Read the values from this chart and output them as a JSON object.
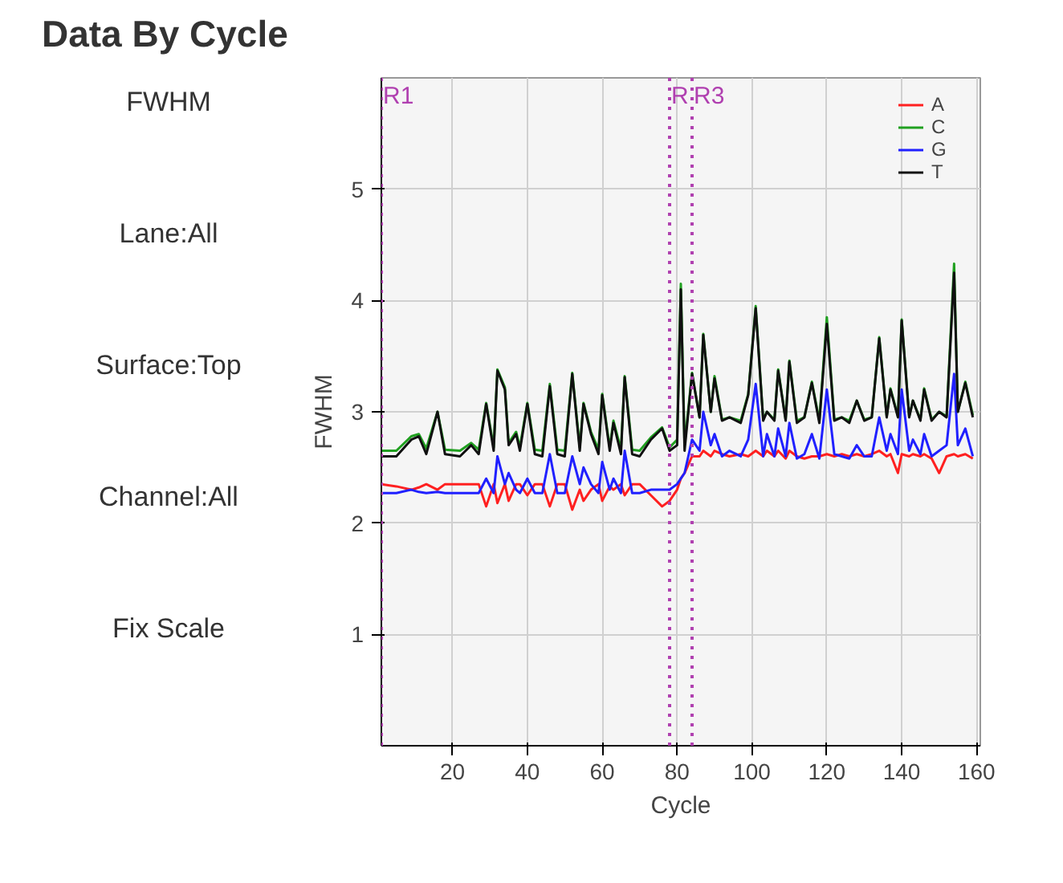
{
  "chart_data": {
    "type": "line",
    "title": "Data By Cycle",
    "xlabel": "Cycle",
    "ylabel": "FWHM",
    "annotations": [
      "FWHM",
      "Lane:All",
      "Surface:Top",
      "Channel:All",
      "Fix Scale"
    ],
    "x": [
      1,
      5,
      9,
      11,
      13,
      16,
      18,
      22,
      25,
      27,
      29,
      31,
      32,
      34,
      35,
      37,
      38,
      40,
      42,
      44,
      46,
      48,
      50,
      52,
      54,
      55,
      57,
      59,
      60,
      62,
      63,
      65,
      66,
      68,
      70,
      73,
      76,
      78,
      80,
      81,
      82,
      84,
      86,
      87,
      89,
      90,
      92,
      94,
      97,
      99,
      101,
      103,
      104,
      106,
      107,
      109,
      110,
      112,
      114,
      116,
      118,
      120,
      122,
      124,
      126,
      128,
      130,
      132,
      134,
      136,
      137,
      139,
      140,
      142,
      143,
      145,
      146,
      148,
      150,
      152,
      154,
      155,
      157,
      159
    ],
    "series": [
      {
        "name": "A",
        "color": "#ff2020",
        "values": [
          2.35,
          2.33,
          2.3,
          2.32,
          2.35,
          2.3,
          2.35,
          2.35,
          2.35,
          2.35,
          2.15,
          2.35,
          2.18,
          2.35,
          2.2,
          2.35,
          2.35,
          2.25,
          2.35,
          2.35,
          2.15,
          2.35,
          2.35,
          2.12,
          2.3,
          2.2,
          2.3,
          2.35,
          2.2,
          2.33,
          2.3,
          2.35,
          2.25,
          2.35,
          2.35,
          2.25,
          2.15,
          2.2,
          2.3,
          2.4,
          2.45,
          2.6,
          2.6,
          2.65,
          2.6,
          2.65,
          2.62,
          2.6,
          2.62,
          2.6,
          2.65,
          2.6,
          2.65,
          2.6,
          2.65,
          2.58,
          2.65,
          2.6,
          2.58,
          2.6,
          2.6,
          2.62,
          2.6,
          2.62,
          2.6,
          2.62,
          2.6,
          2.62,
          2.65,
          2.6,
          2.62,
          2.45,
          2.62,
          2.6,
          2.62,
          2.6,
          2.62,
          2.58,
          2.45,
          2.6,
          2.62,
          2.6,
          2.62,
          2.58
        ]
      },
      {
        "name": "C",
        "color": "#20a020",
        "values": [
          2.65,
          2.65,
          2.78,
          2.8,
          2.67,
          3.0,
          2.66,
          2.65,
          2.72,
          2.66,
          3.08,
          2.68,
          3.38,
          3.22,
          2.72,
          2.82,
          2.68,
          3.08,
          2.66,
          2.65,
          3.25,
          2.66,
          2.65,
          3.35,
          2.68,
          3.08,
          2.82,
          2.66,
          3.16,
          2.68,
          2.92,
          2.66,
          3.32,
          2.66,
          2.65,
          2.77,
          2.86,
          2.68,
          2.75,
          4.15,
          2.7,
          3.35,
          2.95,
          3.7,
          3.0,
          3.32,
          2.93,
          2.95,
          2.92,
          3.16,
          3.95,
          2.93,
          3.0,
          2.93,
          3.38,
          2.93,
          3.46,
          2.92,
          2.95,
          3.27,
          2.92,
          3.85,
          2.93,
          2.95,
          2.92,
          3.1,
          2.93,
          2.95,
          3.67,
          2.96,
          3.21,
          2.96,
          3.83,
          2.96,
          3.1,
          2.93,
          3.21,
          2.93,
          3.0,
          2.96,
          4.33,
          3.0,
          3.27,
          2.97
        ]
      },
      {
        "name": "G",
        "color": "#2020ff",
        "values": [
          2.27,
          2.27,
          2.3,
          2.28,
          2.27,
          2.28,
          2.27,
          2.27,
          2.27,
          2.27,
          2.4,
          2.27,
          2.6,
          2.35,
          2.45,
          2.3,
          2.27,
          2.4,
          2.27,
          2.27,
          2.62,
          2.27,
          2.27,
          2.6,
          2.35,
          2.5,
          2.35,
          2.27,
          2.55,
          2.3,
          2.4,
          2.27,
          2.65,
          2.27,
          2.27,
          2.3,
          2.3,
          2.3,
          2.35,
          2.4,
          2.45,
          2.75,
          2.65,
          3.0,
          2.7,
          2.8,
          2.6,
          2.65,
          2.6,
          2.75,
          3.25,
          2.6,
          2.8,
          2.6,
          2.85,
          2.6,
          2.9,
          2.58,
          2.62,
          2.8,
          2.58,
          3.2,
          2.62,
          2.6,
          2.58,
          2.7,
          2.6,
          2.6,
          2.95,
          2.65,
          2.8,
          2.62,
          3.2,
          2.65,
          2.75,
          2.62,
          2.8,
          2.6,
          2.65,
          2.7,
          3.34,
          2.7,
          2.85,
          2.6
        ]
      },
      {
        "name": "T",
        "color": "#101010",
        "values": [
          2.6,
          2.6,
          2.75,
          2.78,
          2.62,
          3.0,
          2.62,
          2.6,
          2.7,
          2.62,
          3.07,
          2.65,
          3.37,
          3.2,
          2.7,
          2.8,
          2.65,
          3.07,
          2.62,
          2.6,
          3.23,
          2.62,
          2.6,
          3.34,
          2.65,
          3.07,
          2.8,
          2.62,
          3.15,
          2.65,
          2.9,
          2.62,
          3.31,
          2.62,
          2.6,
          2.75,
          2.85,
          2.65,
          2.7,
          4.1,
          2.65,
          3.34,
          2.95,
          3.69,
          3.0,
          3.3,
          2.92,
          2.95,
          2.9,
          3.15,
          3.93,
          2.92,
          3.0,
          2.92,
          3.37,
          2.92,
          3.45,
          2.9,
          2.95,
          3.26,
          2.9,
          3.79,
          2.92,
          2.95,
          2.9,
          3.1,
          2.92,
          2.95,
          3.66,
          2.95,
          3.2,
          2.95,
          3.82,
          2.95,
          3.1,
          2.92,
          3.2,
          2.92,
          3.0,
          2.95,
          4.25,
          3.0,
          3.26,
          2.95
        ]
      }
    ],
    "xlim": [
      1,
      161
    ],
    "ylim": [
      0,
      6
    ],
    "xticks": [
      20,
      40,
      60,
      80,
      100,
      120,
      140,
      160
    ],
    "yticks": [
      1,
      2,
      3,
      4,
      5
    ],
    "ref_lines": [
      {
        "axis": "x",
        "value": 1,
        "label": "R1",
        "color": "#b040b0",
        "line_style": "dotted"
      },
      {
        "axis": "x",
        "value": 78,
        "label": "R",
        "color": "#b040b0",
        "line_style": "dotted"
      },
      {
        "axis": "x",
        "value": 84,
        "label": "R3",
        "color": "#b040b0",
        "line_style": "dotted"
      }
    ],
    "grid": true,
    "legend": "top right",
    "line_style": "solid",
    "marker": "none"
  }
}
